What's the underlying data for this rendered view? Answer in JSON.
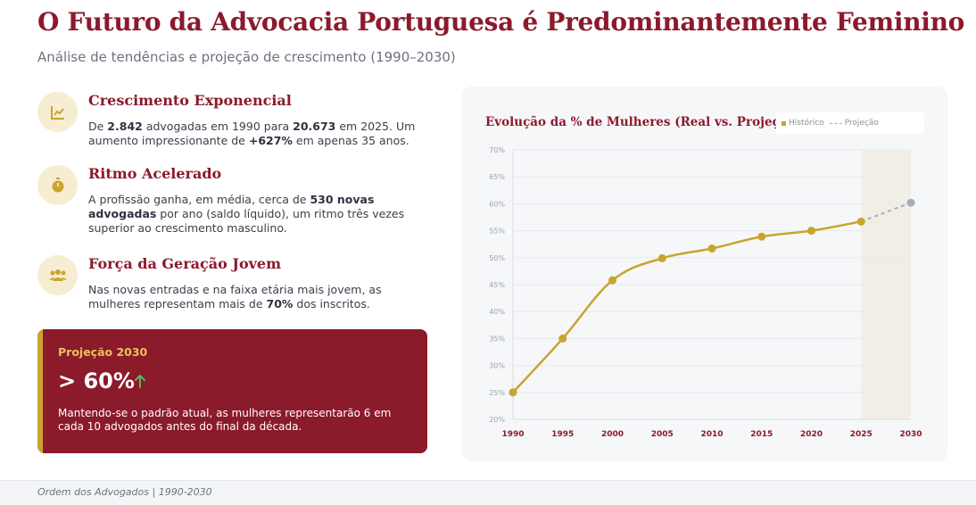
{
  "header": {
    "title": "O Futuro da Advocacia Portuguesa é Predominantemente Feminino",
    "subtitle": "Análise de tendências e projeção de crescimento (1990–2030)"
  },
  "features": [
    {
      "icon": "trending-up-icon",
      "title": "Crescimento Exponencial",
      "text_parts": [
        "De ",
        "2.842",
        " advogadas em 1990 para ",
        "20.673",
        " em 2025. Um aumento impressionante de ",
        "+627%",
        " em apenas 35 anos."
      ]
    },
    {
      "icon": "stopwatch-icon",
      "title": "Ritmo Acelerado",
      "text_parts": [
        "A profissão ganha, em média, cerca de ",
        "530 novas advogadas",
        " por ano (saldo líquido), um ritmo três vezes superior ao crescimento masculino."
      ]
    },
    {
      "icon": "group-icon",
      "title": "Força da Geração Jovem",
      "text_parts": [
        "Nas novas entradas e na faixa etária mais jovem, as mulheres representam mais de ",
        "70%",
        " dos inscritos."
      ]
    }
  ],
  "projection": {
    "label": "Projeção 2030",
    "value": "> 60%",
    "text": "Mantendo-se o padrão atual, as mulheres representarão 6 em cada 10 advogados antes do final da década."
  },
  "chart_data": {
    "type": "line",
    "title": "Evolução da % de Mulheres (Real vs. Projeção)",
    "x": [
      1990,
      1995,
      2000,
      2005,
      2010,
      2015,
      2020,
      2025,
      2030
    ],
    "series": [
      {
        "name": "Histórico",
        "x": [
          1990,
          1995,
          2000,
          2005,
          2010,
          2015,
          2020,
          2025
        ],
        "values": [
          25.0,
          35.0,
          45.8,
          49.9,
          51.7,
          53.9,
          55.0,
          56.7
        ],
        "color": "#c9a42e",
        "style": "solid"
      },
      {
        "name": "Projeção",
        "x": [
          2025,
          2030
        ],
        "values": [
          56.7,
          60.2
        ],
        "color": "#a5adbd",
        "style": "dashed"
      }
    ],
    "y_ticks": [
      "20%",
      "25%",
      "30%",
      "35%",
      "40%",
      "45%",
      "50%",
      "55%",
      "60%",
      "65%",
      "70%"
    ],
    "ylim": [
      20,
      70
    ],
    "xlim": [
      1990,
      2030
    ],
    "projection_band": [
      2025,
      2030
    ],
    "grid": true,
    "legend_position": "top-right",
    "xlabel": "",
    "ylabel": ""
  },
  "footer": {
    "source": "Ordem dos Advogados | 1990-2030"
  },
  "colors": {
    "primary": "#8b1a2b",
    "accent": "#c9a42e",
    "projection": "#a5adbd"
  }
}
